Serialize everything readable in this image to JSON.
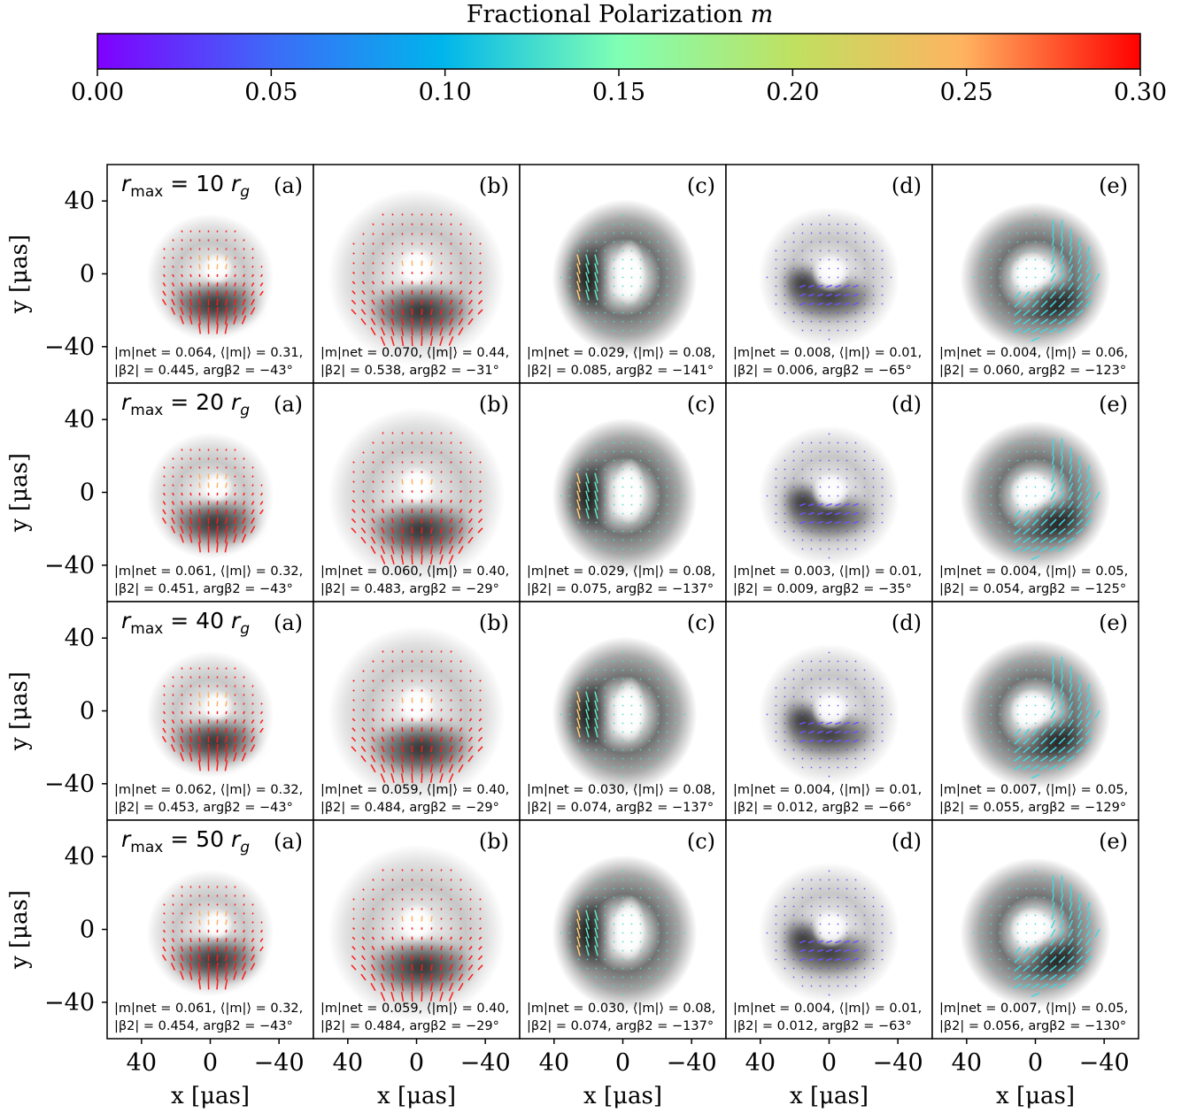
{
  "chart_data": {
    "type": "heatmap",
    "description_of_layout": "4x5 grid of polarized black-hole images",
    "colorbar": {
      "label_text": "Fractional Polarization",
      "label_symbol": "m",
      "range": [
        0.0,
        0.3
      ],
      "ticks": [
        "0.00",
        "0.05",
        "0.10",
        "0.15",
        "0.20",
        "0.25",
        "0.30"
      ],
      "colormap": "rainbow"
    },
    "axes": {
      "xlabel": "x [μas]",
      "ylabel": "y [μas]",
      "x_ticks": [
        "40",
        "0",
        "−40"
      ],
      "y_ticks": [
        "40",
        "0",
        "−40"
      ],
      "xlim": [
        60,
        -60
      ],
      "ylim": [
        -60,
        60
      ]
    },
    "columns": [
      {
        "label": "(a)",
        "color": "#ff1a1a"
      },
      {
        "label": "(b)",
        "color": "#ff1a1a"
      },
      {
        "label": "(c)",
        "color": "#40e0c8"
      },
      {
        "label": "(d)",
        "color": "#7050ff"
      },
      {
        "label": "(e)",
        "color": "#40d8e0"
      }
    ],
    "rows": [
      {
        "rmax_label": "10",
        "panels": [
          {
            "line1": "|m|net = 0.064, ⟨|m|⟩ = 0.31,",
            "line2": "|β2| = 0.445, argβ2 = −43°"
          },
          {
            "line1": "|m|net = 0.070, ⟨|m|⟩ = 0.44,",
            "line2": "|β2| = 0.538, argβ2 = −31°"
          },
          {
            "line1": "|m|net = 0.029, ⟨|m|⟩ = 0.08,",
            "line2": "|β2| = 0.085, argβ2 = −141°"
          },
          {
            "line1": "|m|net = 0.008, ⟨|m|⟩ = 0.01,",
            "line2": "|β2| = 0.006, argβ2 = −65°"
          },
          {
            "line1": "|m|net = 0.004, ⟨|m|⟩ = 0.06,",
            "line2": "|β2| = 0.060, argβ2 = −123°"
          }
        ]
      },
      {
        "rmax_label": "20",
        "panels": [
          {
            "line1": "|m|net = 0.061, ⟨|m|⟩ = 0.32,",
            "line2": "|β2| = 0.451, argβ2 = −43°"
          },
          {
            "line1": "|m|net = 0.060, ⟨|m|⟩ = 0.40,",
            "line2": "|β2| = 0.483, argβ2 = −29°"
          },
          {
            "line1": "|m|net = 0.029, ⟨|m|⟩ = 0.08,",
            "line2": "|β2| = 0.075, argβ2 = −137°"
          },
          {
            "line1": "|m|net = 0.003, ⟨|m|⟩ = 0.01,",
            "line2": "|β2| = 0.009, argβ2 = −35°"
          },
          {
            "line1": "|m|net = 0.004, ⟨|m|⟩ = 0.05,",
            "line2": "|β2| = 0.054, argβ2 = −125°"
          }
        ]
      },
      {
        "rmax_label": "40",
        "panels": [
          {
            "line1": "|m|net = 0.062, ⟨|m|⟩ = 0.32,",
            "line2": "|β2| = 0.453, argβ2 = −43°"
          },
          {
            "line1": "|m|net = 0.059, ⟨|m|⟩ = 0.40,",
            "line2": "|β2| = 0.484, argβ2 = −29°"
          },
          {
            "line1": "|m|net = 0.030, ⟨|m|⟩ = 0.08,",
            "line2": "|β2| = 0.074, argβ2 = −137°"
          },
          {
            "line1": "|m|net = 0.004, ⟨|m|⟩ = 0.01,",
            "line2": "|β2| = 0.012, argβ2 = −66°"
          },
          {
            "line1": "|m|net = 0.007, ⟨|m|⟩ = 0.05,",
            "line2": "|β2| = 0.055, argβ2 = −129°"
          }
        ]
      },
      {
        "rmax_label": "50",
        "panels": [
          {
            "line1": "|m|net = 0.061, ⟨|m|⟩ = 0.32,",
            "line2": "|β2| = 0.454, argβ2 = −43°"
          },
          {
            "line1": "|m|net = 0.059, ⟨|m|⟩ = 0.40,",
            "line2": "|β2| = 0.484, argβ2 = −29°"
          },
          {
            "line1": "|m|net = 0.030, ⟨|m|⟩ = 0.08,",
            "line2": "|β2| = 0.074, argβ2 = −137°"
          },
          {
            "line1": "|m|net = 0.004, ⟨|m|⟩ = 0.01,",
            "line2": "|β2| = 0.012, argβ2 = −63°"
          },
          {
            "line1": "|m|net = 0.007, ⟨|m|⟩ = 0.05,",
            "line2": "|β2| = 0.056, argβ2 = −130°"
          }
        ]
      }
    ]
  }
}
